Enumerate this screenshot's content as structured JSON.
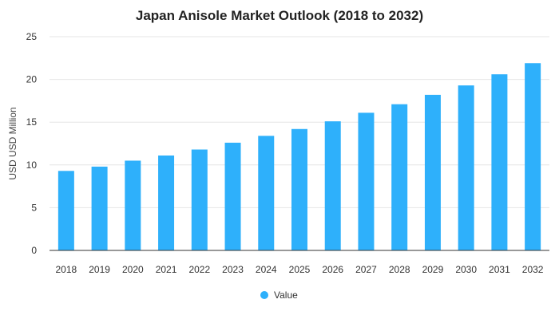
{
  "chart_data": {
    "type": "bar",
    "title": "Japan Anisole Market Outlook (2018 to 2032)",
    "xlabel": "",
    "ylabel": "USD USD Million",
    "categories": [
      "2018",
      "2019",
      "2020",
      "2021",
      "2022",
      "2023",
      "2024",
      "2025",
      "2026",
      "2027",
      "2028",
      "2029",
      "2030",
      "2031",
      "2032"
    ],
    "series": [
      {
        "name": "Value",
        "values": [
          9.3,
          9.8,
          10.5,
          11.1,
          11.8,
          12.6,
          13.4,
          14.2,
          15.1,
          16.1,
          17.1,
          18.2,
          19.3,
          20.6,
          21.9
        ]
      }
    ],
    "ylim": [
      0,
      25
    ],
    "yticks": [
      0,
      5,
      10,
      15,
      20,
      25
    ],
    "grid": true,
    "legend": "bottom",
    "colors": {
      "bar": "#2eb0fb"
    }
  }
}
